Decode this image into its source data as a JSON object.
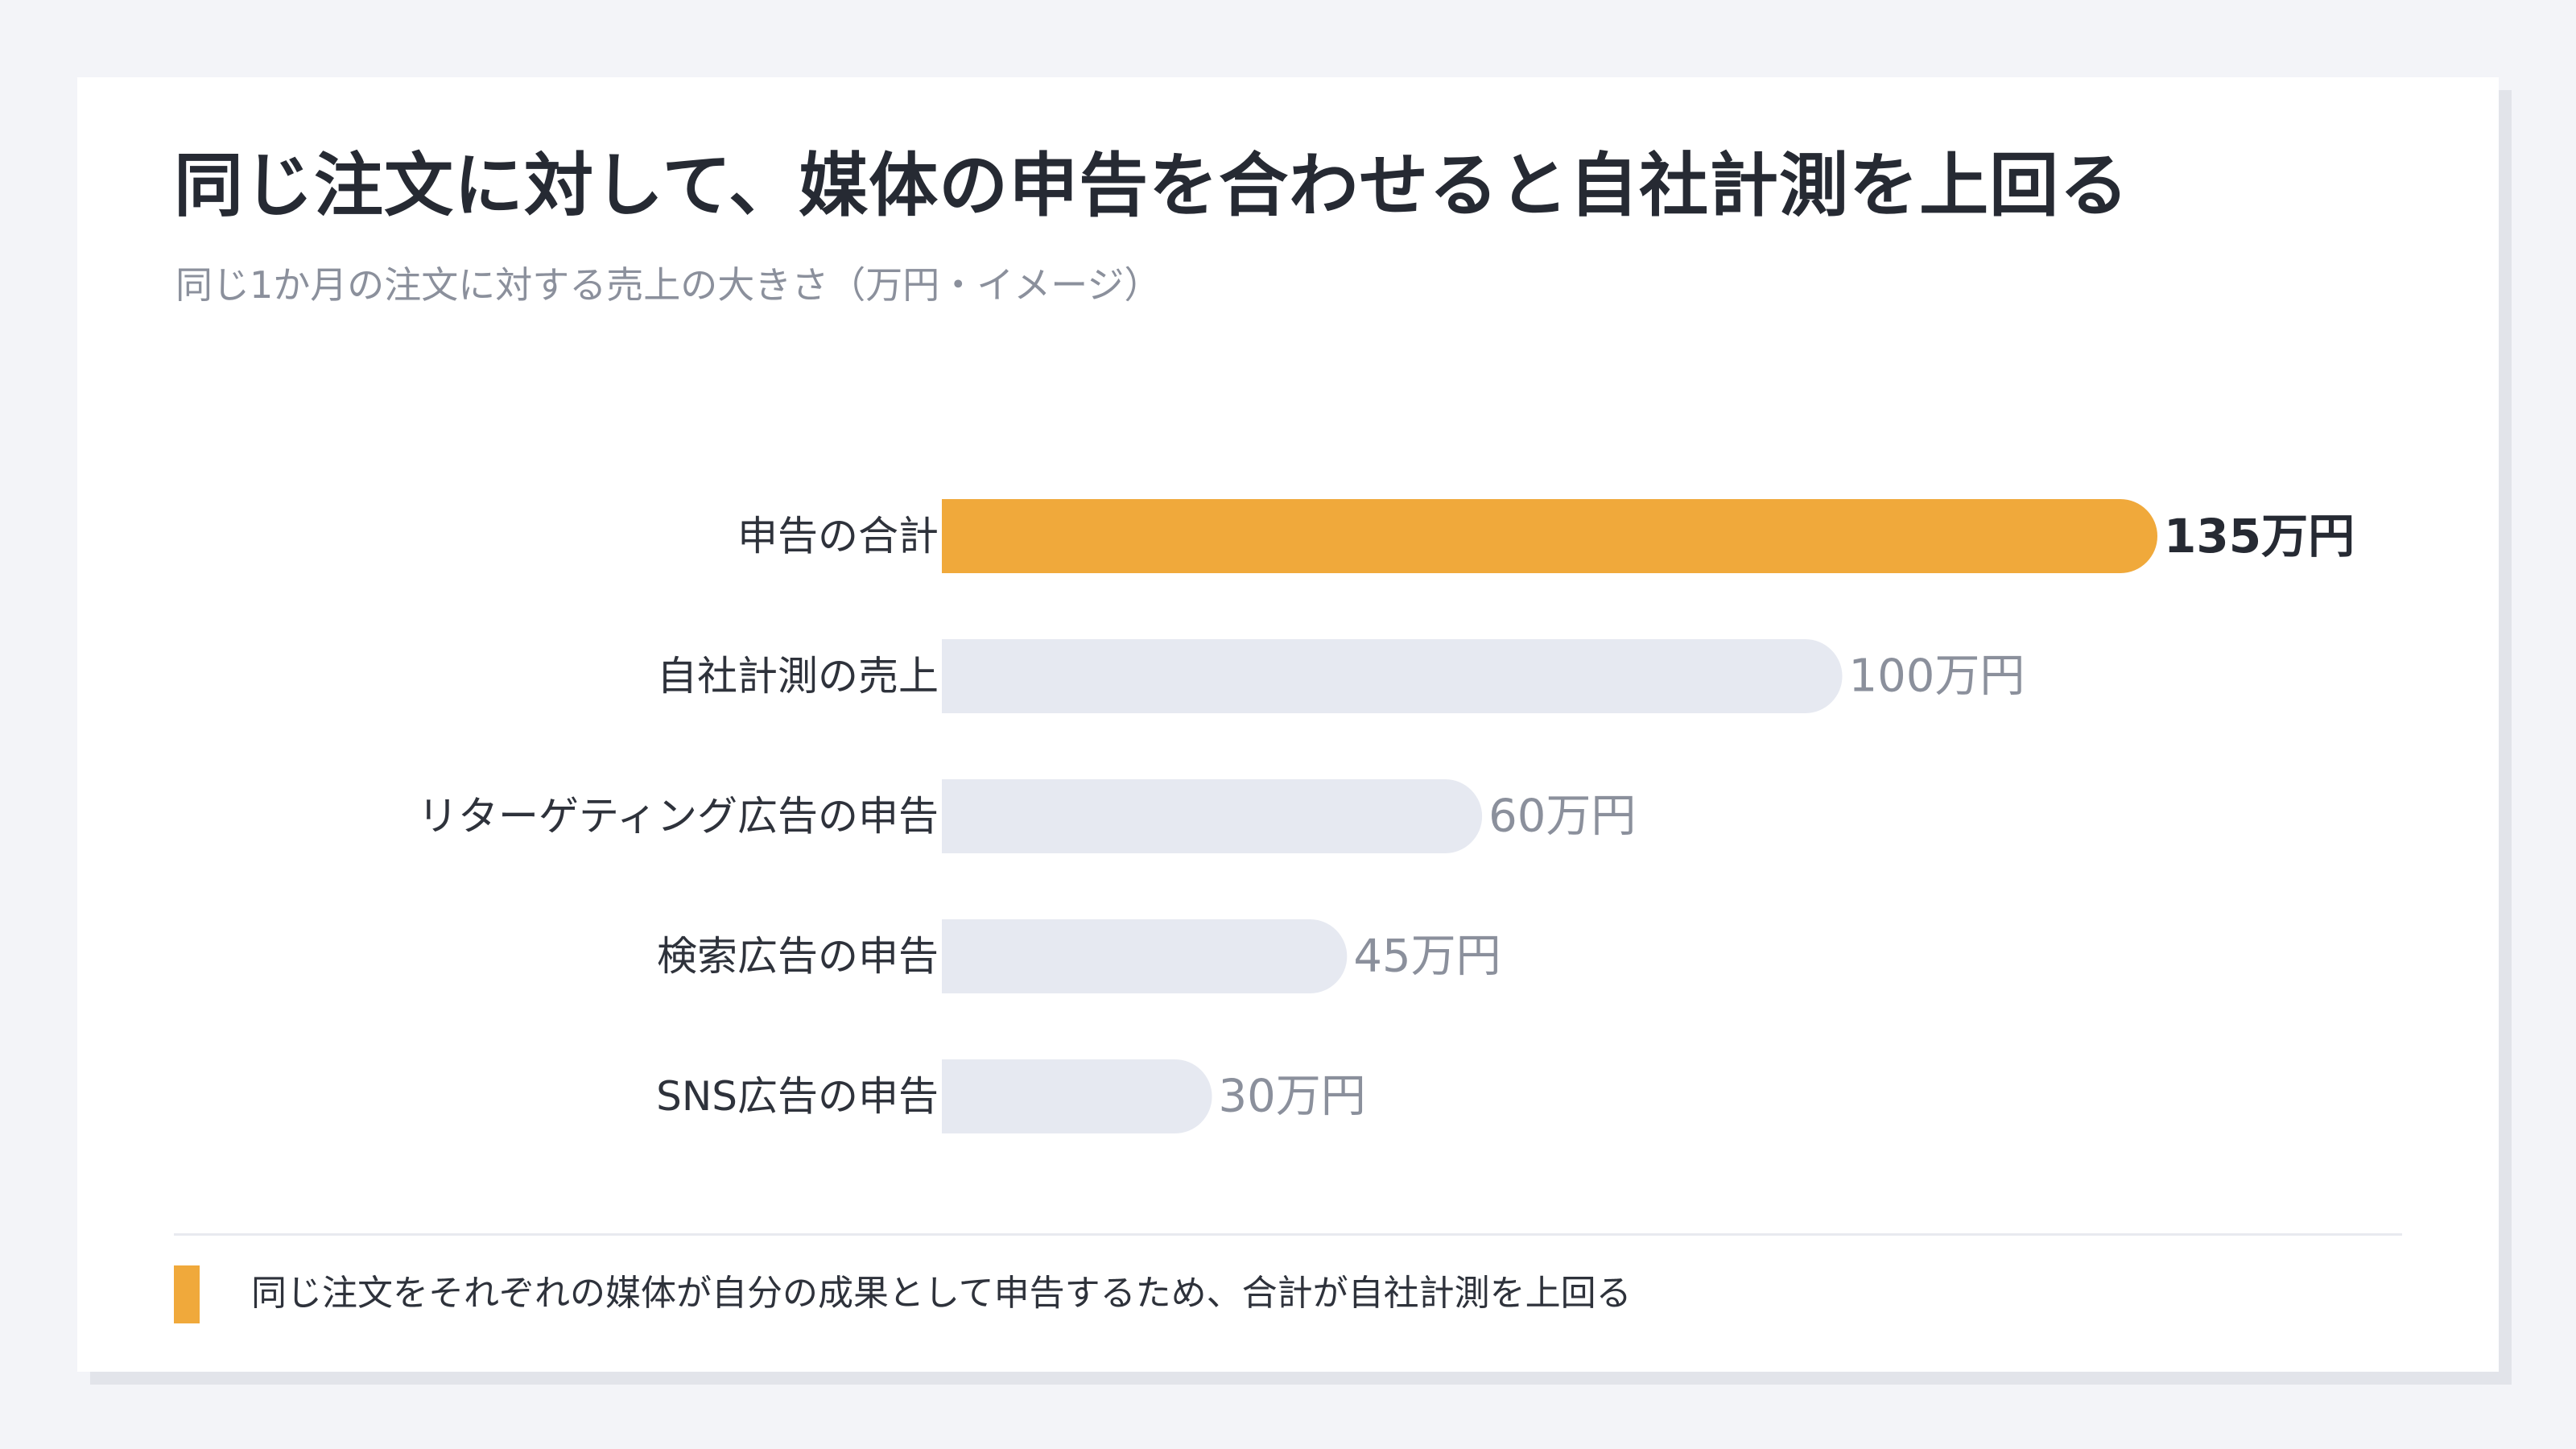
{
  "title": "同じ注文に対して、媒体の申告を合わせると自社計測を上回る",
  "subtitle": "同じ1か月の注文に対する売上の大きさ（万円・イメージ）",
  "note": "同じ注文をそれぞれの媒体が自分の成果として申告するため、合計が自社計測を上回る",
  "colors": {
    "highlight": "#f0a93b",
    "bar": "#e6e9f1",
    "label": "#2e323b",
    "value": "#8b909c",
    "value_highlight": "#262a33"
  },
  "chart_data": {
    "type": "bar",
    "orientation": "horizontal",
    "categories": [
      "申告の合計",
      "自社計測の売上",
      "リターゲティング広告の申告",
      "検索広告の申告",
      "SNS広告の申告"
    ],
    "values": [
      135,
      100,
      60,
      45,
      30
    ],
    "value_labels": [
      "135万円",
      "100万円",
      "60万円",
      "45万円",
      "30万円"
    ],
    "highlight_index": 0,
    "xlim": [
      0,
      135
    ],
    "grid": false
  }
}
